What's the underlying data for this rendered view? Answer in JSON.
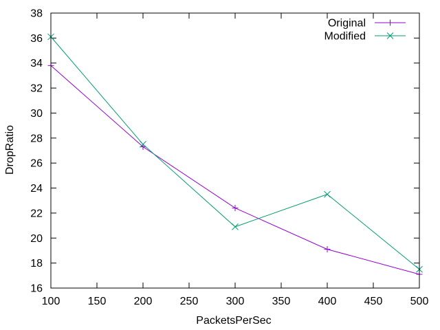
{
  "chart_data": {
    "type": "line",
    "title": "",
    "xlabel": "PacketsPerSec",
    "ylabel": "DropRatio",
    "xlim": [
      100,
      500
    ],
    "ylim": [
      16,
      38
    ],
    "xticks": [
      100,
      150,
      200,
      250,
      300,
      350,
      400,
      450,
      500
    ],
    "yticks": [
      16,
      18,
      20,
      22,
      24,
      26,
      28,
      30,
      32,
      34,
      36,
      38
    ],
    "grid": false,
    "legend_position": "top-right",
    "x": [
      100,
      200,
      300,
      400,
      500
    ],
    "series": [
      {
        "name": "Original",
        "color": "#9400d3",
        "marker": "plus",
        "values": [
          33.8,
          27.3,
          22.4,
          19.1,
          17.1
        ]
      },
      {
        "name": "Modified",
        "color": "#009e73",
        "marker": "cross",
        "values": [
          36.1,
          27.5,
          20.9,
          23.5,
          17.5
        ]
      }
    ]
  }
}
